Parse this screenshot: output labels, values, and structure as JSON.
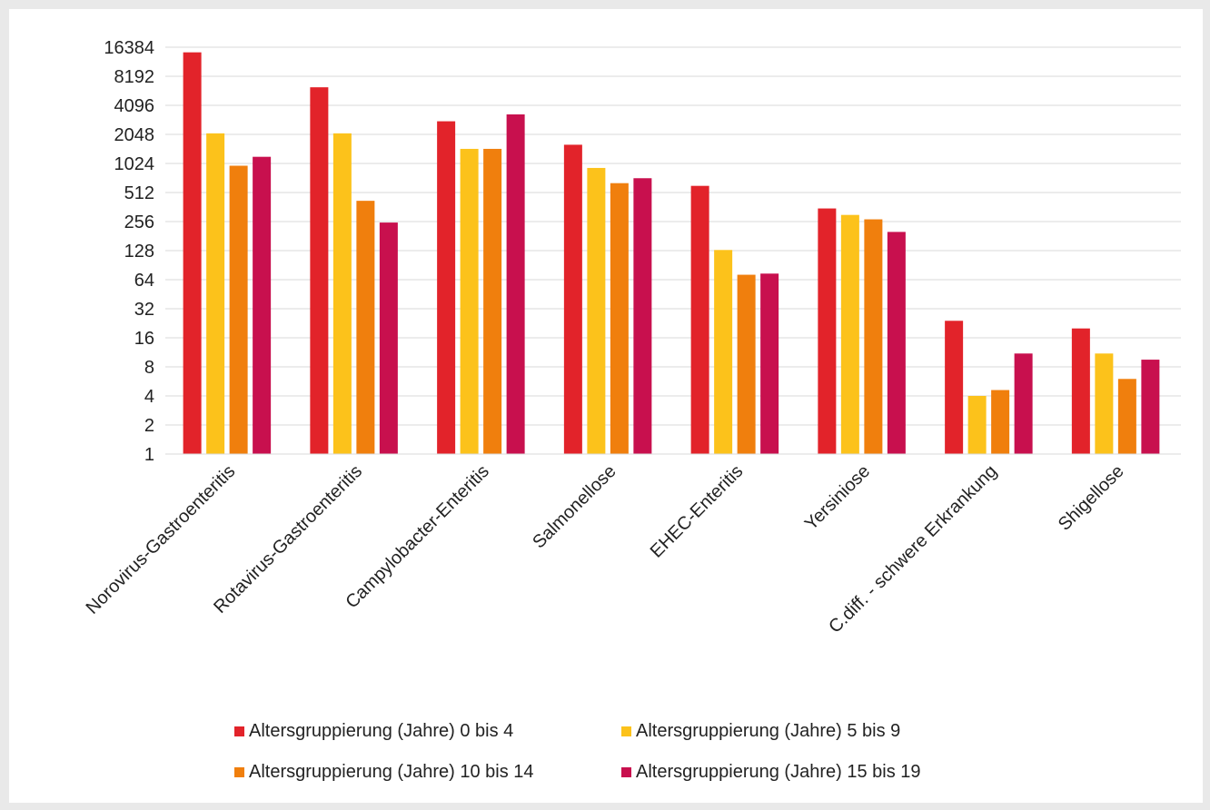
{
  "chart_data": {
    "type": "bar",
    "title": "",
    "xlabel": "",
    "ylabel": "",
    "yscale": "log2",
    "ylim": [
      1,
      16384
    ],
    "yticks": [
      "1",
      "2",
      "4",
      "8",
      "16",
      "32",
      "64",
      "128",
      "256",
      "512",
      "1024",
      "2048",
      "4096",
      "8192",
      "16384"
    ],
    "grid": true,
    "legend_position": "bottom",
    "categories": [
      "Norovirus-Gastroenteritis",
      "Rotavirus-Gastroenteritis",
      "Campylobacter-Enteritis",
      "Salmonellose",
      "EHEC-Enteritis",
      "Yersiniose",
      "C.diff. - schwere Erkrankung",
      "Shigellose"
    ],
    "series": [
      {
        "name": "Altersgruppierung (Jahre) 0 bis 4",
        "color": "#e2232a",
        "values": [
          14500,
          6300,
          2800,
          1600,
          600,
          350,
          24,
          20
        ]
      },
      {
        "name": "Altersgruppierung (Jahre) 5 bis 9",
        "color": "#fcc21b",
        "values": [
          2100,
          2100,
          1450,
          920,
          130,
          300,
          4,
          11
        ]
      },
      {
        "name": "Altersgruppierung (Jahre) 10 bis 14",
        "color": "#f07f0d",
        "values": [
          970,
          420,
          1450,
          640,
          72,
          270,
          4.6,
          6
        ]
      },
      {
        "name": "Altersgruppierung (Jahre) 15 bis 19",
        "color": "#c8104e",
        "values": [
          1200,
          250,
          3300,
          720,
          74,
          200,
          11,
          9.5
        ]
      }
    ]
  }
}
